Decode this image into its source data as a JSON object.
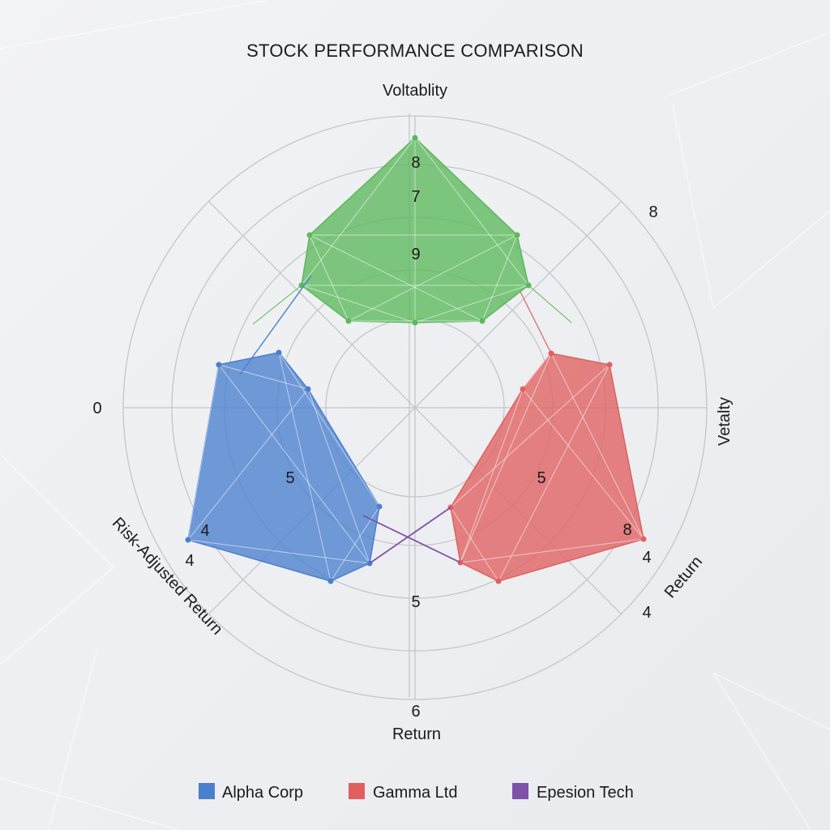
{
  "chart_data": {
    "type": "radar",
    "title": "STOCK PERFORMANCE COMPARISON",
    "axes": [
      "Voltablity",
      "Vetalty",
      "Return",
      "Risk-Adjusted Return"
    ],
    "tick_labels": [
      "8",
      "7",
      "9",
      "8",
      "0",
      "5",
      "5",
      "5",
      "4",
      "4",
      "8",
      "4",
      "4",
      "6"
    ],
    "grid": true,
    "legend_position": "bottom",
    "series": [
      {
        "name": "Alpha Corp",
        "color": "#4a7fce"
      },
      {
        "name": "Gamma Ltd",
        "color": "#e06060"
      },
      {
        "name": "Epesion Tech",
        "color": "#7e52a8"
      }
    ],
    "untitled_series_color": "#5cb85c"
  }
}
